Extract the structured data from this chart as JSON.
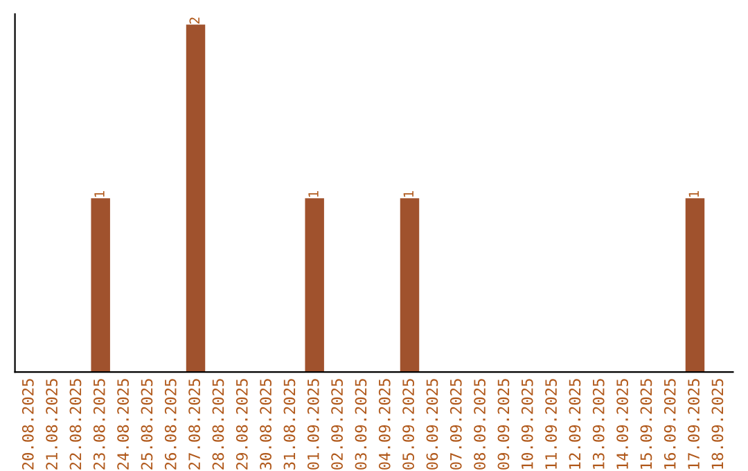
{
  "chart_data": {
    "type": "bar",
    "categories": [
      "20.08.2025",
      "21.08.2025",
      "22.08.2025",
      "23.08.2025",
      "24.08.2025",
      "25.08.2025",
      "26.08.2025",
      "27.08.2025",
      "28.08.2025",
      "29.08.2025",
      "30.08.2025",
      "31.08.2025",
      "01.09.2025",
      "02.09.2025",
      "03.09.2025",
      "04.09.2025",
      "05.09.2025",
      "06.09.2025",
      "07.09.2025",
      "08.09.2025",
      "09.09.2025",
      "10.09.2025",
      "11.09.2025",
      "12.09.2025",
      "13.09.2025",
      "14.09.2025",
      "15.09.2025",
      "16.09.2025",
      "17.09.2025",
      "18.09.2025"
    ],
    "values": [
      0,
      0,
      0,
      1,
      0,
      0,
      0,
      2,
      0,
      0,
      0,
      0,
      1,
      0,
      0,
      0,
      1,
      0,
      0,
      0,
      0,
      0,
      0,
      0,
      0,
      0,
      0,
      0,
      1,
      0
    ],
    "value_labels": [
      null,
      null,
      null,
      "1",
      null,
      null,
      null,
      "2",
      null,
      null,
      null,
      null,
      "1",
      null,
      null,
      null,
      "1",
      null,
      null,
      null,
      null,
      null,
      null,
      null,
      null,
      null,
      null,
      null,
      "1",
      null
    ],
    "color": "#a0522d",
    "tick_labels": "x",
    "grid": false,
    "legend": false
  }
}
